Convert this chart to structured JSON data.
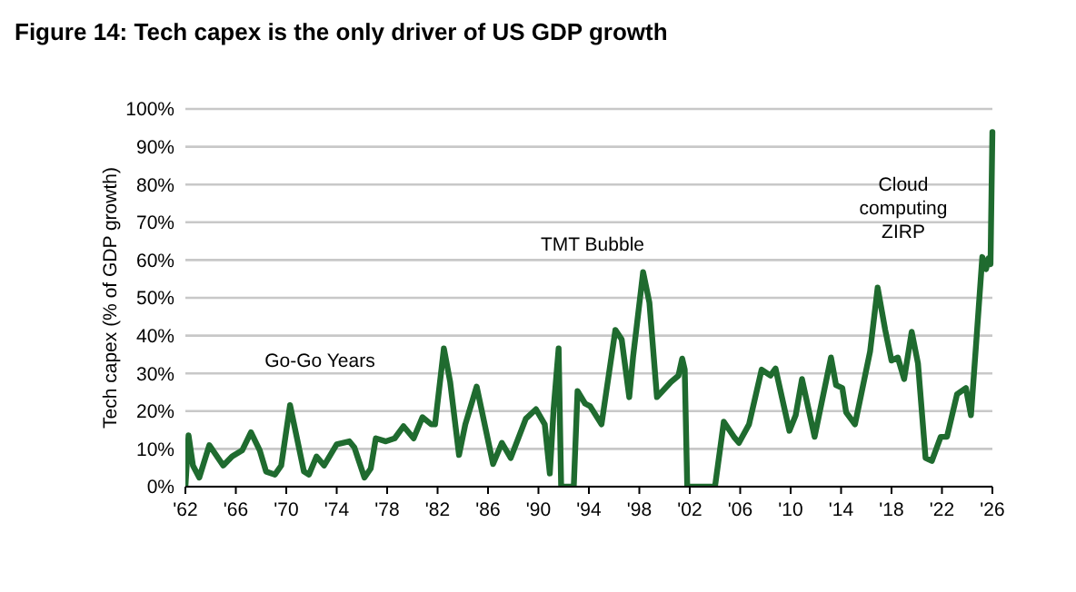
{
  "chart_data": {
    "type": "line",
    "title": "Figure 14: Tech capex is the only driver of US GDP growth",
    "ylabel": "Tech capex (% of GDP growth)",
    "x": [
      1962,
      1962.25,
      1962.6,
      1963.1,
      1963.9,
      1965,
      1965.7,
      1966.5,
      1967.2,
      1967.9,
      1968.4,
      1969.1,
      1969.6,
      1970.3,
      1970.8,
      1971.4,
      1971.8,
      1972.4,
      1973,
      1974,
      1975,
      1975.4,
      1976.2,
      1976.7,
      1977.1,
      1977.9,
      1978.6,
      1979.3,
      1980.1,
      1980.8,
      1981.5,
      1981.8,
      1982.5,
      1983,
      1983.7,
      1984.2,
      1985.1,
      1986.4,
      1987.1,
      1987.8,
      1989,
      1989.8,
      1990.5,
      1990.9,
      1991.2,
      1991.6,
      1991.8,
      1992.8,
      1993.1,
      1993.7,
      1994.1,
      1995,
      1996.1,
      1996.6,
      1997.2,
      1997.5,
      1998.3,
      1998.8,
      1999.4,
      2000.5,
      2001.1,
      2001.4,
      2001.6,
      2001.8,
      2004,
      2004.7,
      2005.5,
      2005.9,
      2006.7,
      2007.7,
      2008.4,
      2008.8,
      2009.9,
      2010.4,
      2010.9,
      2011.9,
      2012.3,
      2013.2,
      2013.6,
      2014.1,
      2014.4,
      2015.1,
      2015.5,
      2016.3,
      2016.9,
      2017.5,
      2018,
      2018.5,
      2019,
      2019.6,
      2020.1,
      2020.7,
      2021.2,
      2021.9,
      2022.4,
      2023.2,
      2023.9,
      2024.3,
      2024.7,
      2025.2,
      2025.5,
      2025.7,
      2025.85,
      2026
    ],
    "series": [
      {
        "color": "#1f6b2f",
        "values": [
          0,
          13.6,
          5.6,
          2.4,
          11,
          5.6,
          8,
          9.6,
          14.4,
          9.6,
          4,
          3.2,
          5.6,
          21.6,
          13.6,
          4,
          3.2,
          8,
          5.6,
          11.2,
          12,
          10.4,
          2.4,
          4.8,
          12.8,
          12,
          12.8,
          16,
          12.8,
          18.4,
          16.5,
          16.5,
          36.6,
          27.7,
          8.4,
          16.5,
          26.5,
          6,
          11.6,
          7.6,
          18,
          20.5,
          16.5,
          3.5,
          20.5,
          36.6,
          0,
          0,
          25.3,
          22,
          21.3,
          16.5,
          41.5,
          39,
          23.7,
          34.2,
          56.8,
          48.7,
          23.7,
          27.7,
          29.4,
          33.9,
          31,
          0,
          0,
          17.2,
          13.2,
          11.6,
          16.5,
          31,
          29.4,
          31.3,
          14.8,
          18.9,
          28.5,
          13.2,
          19.7,
          34.2,
          26.9,
          26.1,
          19.7,
          16.5,
          22.9,
          35.8,
          52.7,
          41.5,
          33.4,
          34.2,
          28.5,
          41,
          32.6,
          7.6,
          6.8,
          13.2,
          13.2,
          24.5,
          26.1,
          18.9,
          37.4,
          60.8,
          57.6,
          60.5,
          58.9,
          93.9
        ]
      }
    ],
    "xlim": [
      1962,
      2026
    ],
    "xticks": [
      {
        "value": 1962,
        "label": "'62"
      },
      {
        "value": 1966,
        "label": "'66"
      },
      {
        "value": 1970,
        "label": "'70"
      },
      {
        "value": 1974,
        "label": "'74"
      },
      {
        "value": 1978,
        "label": "'78"
      },
      {
        "value": 1982,
        "label": "'82"
      },
      {
        "value": 1986,
        "label": "'86"
      },
      {
        "value": 1990,
        "label": "'90"
      },
      {
        "value": 1994,
        "label": "'94"
      },
      {
        "value": 1998,
        "label": "'98"
      },
      {
        "value": 2002,
        "label": "'02"
      },
      {
        "value": 2006,
        "label": "'06"
      },
      {
        "value": 2010,
        "label": "'10"
      },
      {
        "value": 2014,
        "label": "'14"
      },
      {
        "value": 2018,
        "label": "'18"
      },
      {
        "value": 2022,
        "label": "'22"
      },
      {
        "value": 2026,
        "label": "'26"
      }
    ],
    "ylim": [
      0,
      100
    ],
    "yticks": [
      {
        "value": 0,
        "label": "0%"
      },
      {
        "value": 10,
        "label": "10%"
      },
      {
        "value": 20,
        "label": "20%"
      },
      {
        "value": 30,
        "label": "30%"
      },
      {
        "value": 40,
        "label": "40%"
      },
      {
        "value": 50,
        "label": "50%"
      },
      {
        "value": 60,
        "label": "60%"
      },
      {
        "value": 70,
        "label": "70%"
      },
      {
        "value": 80,
        "label": "80%"
      },
      {
        "value": 90,
        "label": "90%"
      },
      {
        "value": 100,
        "label": "100%"
      }
    ],
    "grid": "y",
    "annotations": [
      "Go-Go Years",
      "TMT Bubble",
      "Cloud\ncomputing\nZIRP"
    ]
  }
}
